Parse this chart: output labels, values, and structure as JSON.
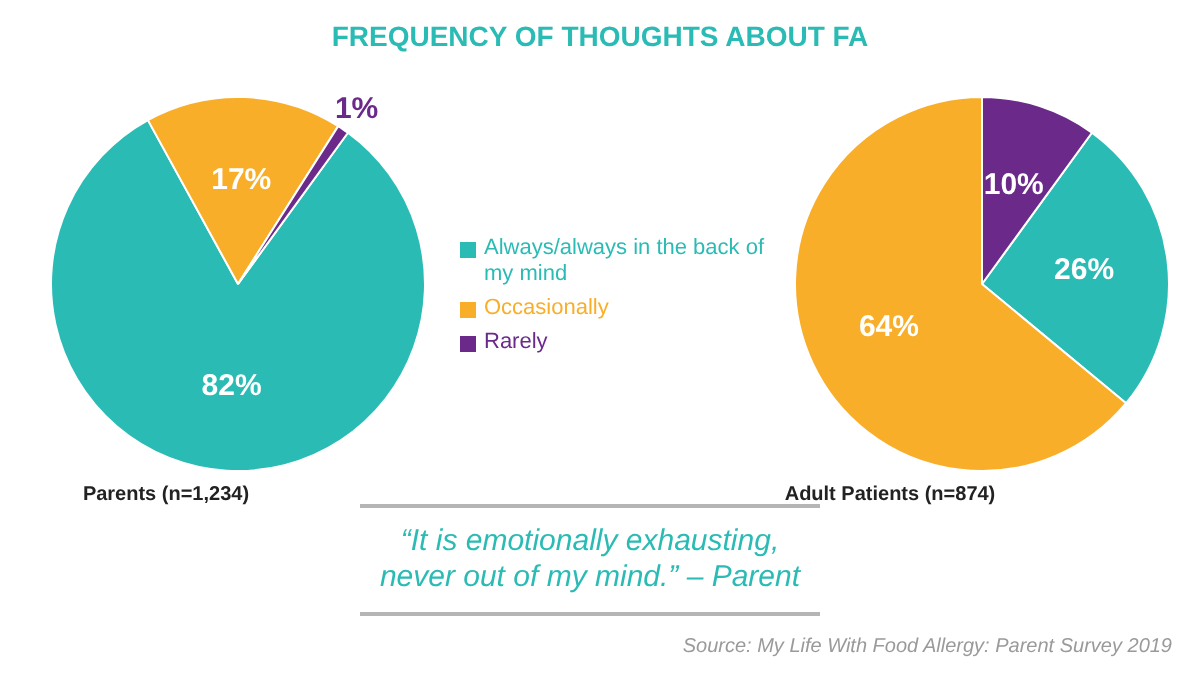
{
  "chart_data": [
    {
      "type": "pie",
      "title": "FREQUENCY OF THOUGHTS ABOUT FA",
      "xlabel": "Parents (n=1,234)",
      "categories": [
        "Always/always in the back of my mind",
        "Occasionally",
        "Rarely"
      ],
      "values": [
        82,
        17,
        1
      ],
      "colors": [
        "#2bbbb5",
        "#f9ae2a",
        "#6b2a8a"
      ],
      "value_labels": [
        "82%",
        "17%",
        "1%"
      ],
      "legend": "right"
    },
    {
      "type": "pie",
      "xlabel": "Adult Patients (n=874)",
      "categories": [
        null,
        null,
        null
      ],
      "values": [
        26,
        64,
        10
      ],
      "colors": [
        "#2bbbb5",
        "#f9ae2a",
        "#6b2a8a"
      ],
      "value_labels": [
        "26%",
        "64%",
        "10%"
      ]
    },
    {
      "type": "other",
      "annotations": [
        "“It is emotionally exhausting, never out of my mind.” – Parent",
        "Source: My Life With Food Allergy: Parent Survey 2019"
      ]
    }
  ]
}
